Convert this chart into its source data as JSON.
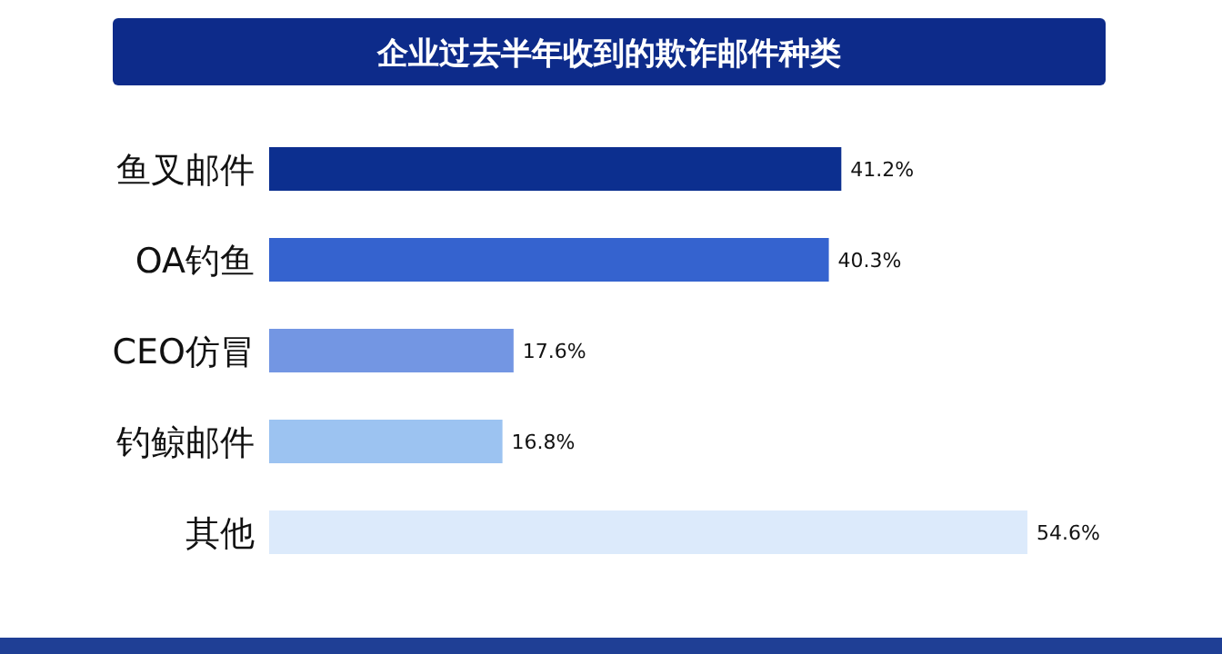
{
  "chart_data": {
    "type": "bar",
    "orientation": "horizontal",
    "title": "企业过去半年收到的欺诈邮件种类",
    "categories": [
      "鱼叉邮件",
      "OA钓鱼",
      "CEO仿冒",
      "钓鲸邮件",
      "其他"
    ],
    "values": [
      41.2,
      40.3,
      17.6,
      16.8,
      54.6
    ],
    "value_labels": [
      "41.2%",
      "40.3%",
      "17.6%",
      "16.8%",
      "54.6%"
    ],
    "colors": [
      "#0c2f8f",
      "#3563cf",
      "#7396e3",
      "#9cc3f1",
      "#dceafb"
    ]
  }
}
